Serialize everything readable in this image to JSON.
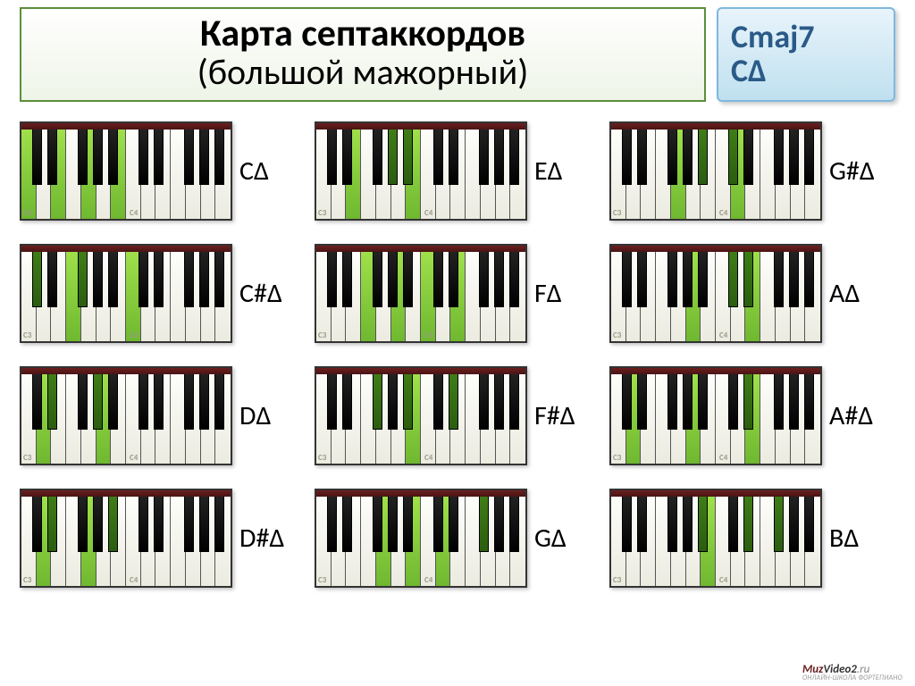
{
  "title": {
    "line1": "Карта септаккордов",
    "line2": "(большой мажорный)",
    "border_color": "#5b8f3b",
    "bg_gradient_top": "#ffffff",
    "bg_gradient_bottom": "#eef4e7"
  },
  "chord_type": {
    "line1": "Cmaj7",
    "line2": "CΔ",
    "text_color": "#2a5a88",
    "border_color": "#7fb7dd",
    "bg_gradient_top": "#e8f4fb",
    "bg_gradient_bottom": "#bfe0ef"
  },
  "keyboard": {
    "white_keys": 14,
    "white_key_w": 17,
    "white_key_h": 100,
    "black_key_w": 11,
    "black_key_h": 62,
    "black_positions": [
      0,
      1,
      3,
      4,
      5,
      7,
      8,
      10,
      11,
      12
    ],
    "white_hl_color_top": "#9fe04a",
    "white_hl_color_bottom": "#6fb830",
    "black_hl_color_top": "#3f7d17",
    "black_hl_color_bottom": "#2b5d0f",
    "octave_labels": [
      {
        "text": "C3",
        "white_index": 0
      },
      {
        "text": "C4",
        "white_index": 7
      }
    ]
  },
  "chords": [
    {
      "label": "CΔ",
      "white_hl": [
        0,
        2,
        4,
        6
      ],
      "black_hl": []
    },
    {
      "label": "EΔ",
      "white_hl": [
        2,
        6
      ],
      "black_hl": [
        4,
        5
      ]
    },
    {
      "label": "G#Δ",
      "white_hl": [
        4,
        8
      ],
      "black_hl": [
        5,
        7
      ]
    },
    {
      "label": "C#Δ",
      "white_hl": [
        3,
        7
      ],
      "black_hl": [
        0,
        3
      ]
    },
    {
      "label": "FΔ",
      "white_hl": [
        3,
        5,
        7,
        9
      ],
      "black_hl": []
    },
    {
      "label": "AΔ",
      "white_hl": [
        5,
        9
      ],
      "black_hl": [
        7,
        8
      ]
    },
    {
      "label": "DΔ",
      "white_hl": [
        1,
        5
      ],
      "black_hl": [
        1,
        4
      ]
    },
    {
      "label": "F#Δ",
      "white_hl": [
        6
      ],
      "black_hl": [
        3,
        5,
        8
      ]
    },
    {
      "label": "A#Δ",
      "white_hl": [
        1,
        5,
        9
      ],
      "black_hl": [
        8
      ]
    },
    {
      "label": "D#Δ",
      "white_hl": [
        1,
        4
      ],
      "black_hl": [
        1,
        5
      ]
    },
    {
      "label": "GΔ",
      "white_hl": [
        4,
        6,
        8
      ],
      "black_hl": [
        10
      ]
    },
    {
      "label": "BΔ",
      "white_hl": [
        6
      ],
      "black_hl": [
        5,
        8,
        10
      ]
    }
  ],
  "footer": {
    "brand_p1": "Muz",
    "brand_p2": "Video2",
    "brand_p3": ".ru",
    "sub": "ОНЛАЙН-ШКОЛА ФОРТЕПИАНО"
  }
}
